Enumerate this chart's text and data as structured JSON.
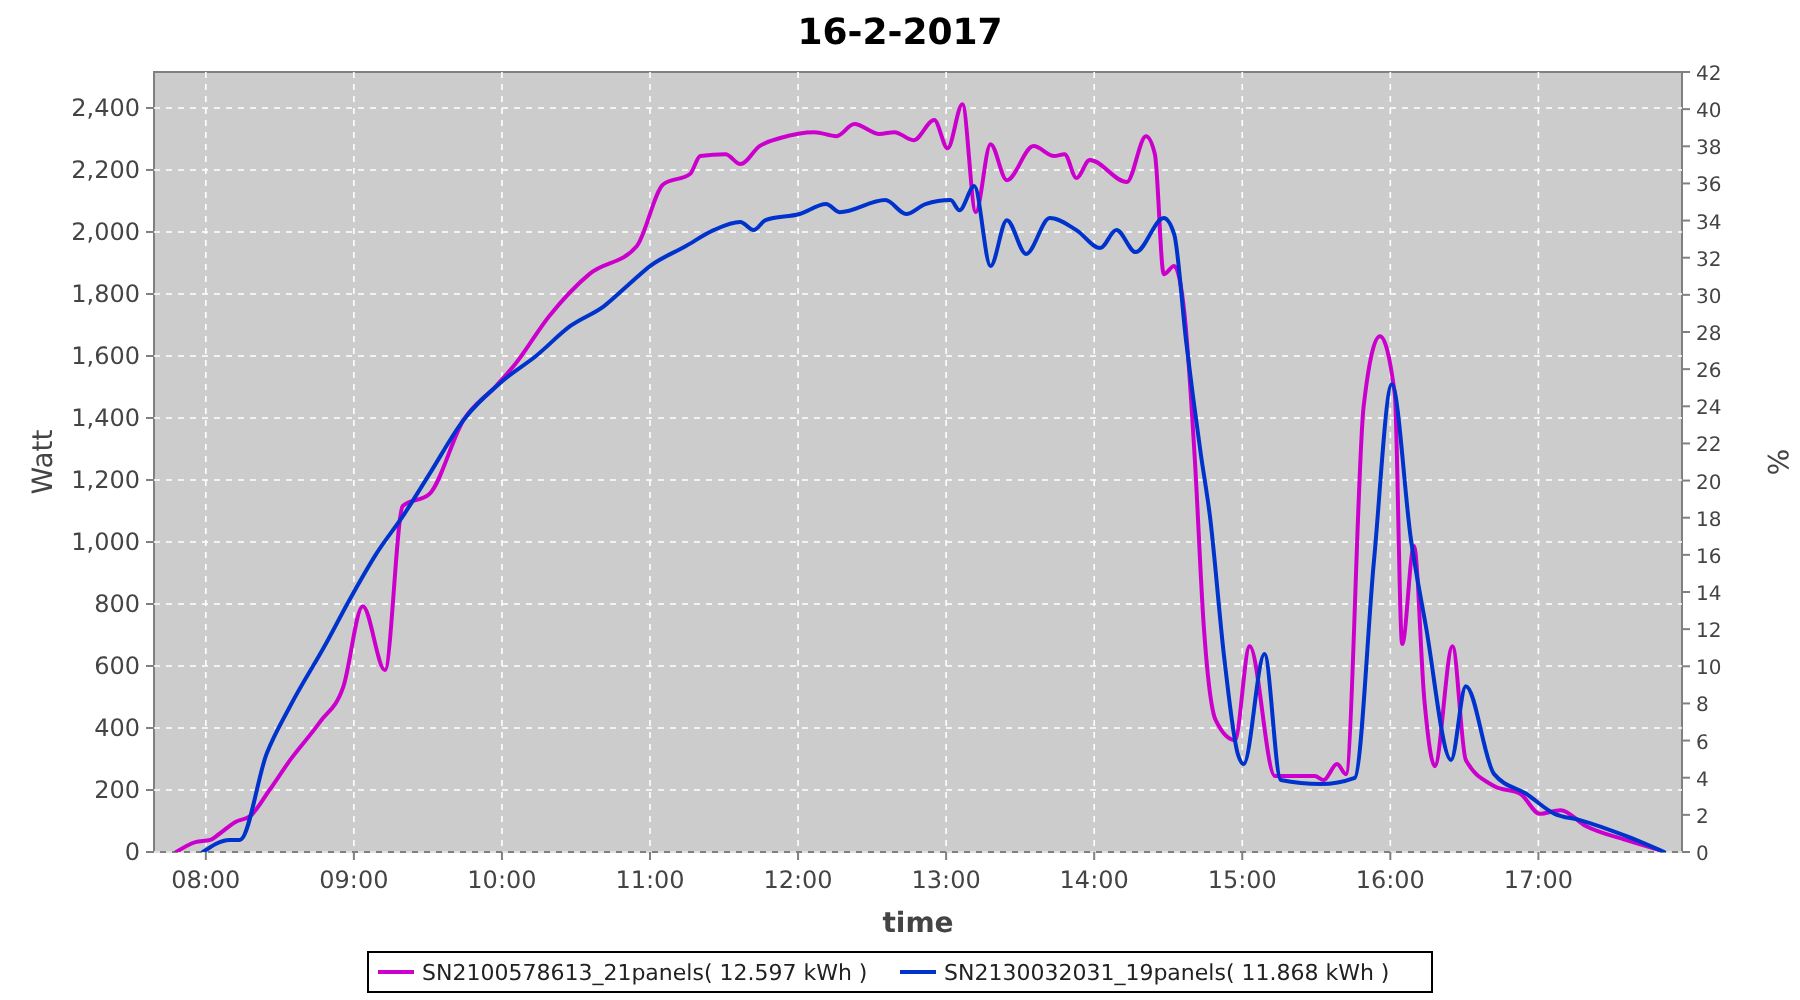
{
  "chart_data": {
    "type": "line",
    "title": "16-2-2017",
    "xlabel": "time",
    "ylabel": "Watt",
    "y2label": "%",
    "xlim": [
      7.65,
      17.97
    ],
    "xticks": [
      {
        "value": 8,
        "label": "08:00"
      },
      {
        "value": 9,
        "label": "09:00"
      },
      {
        "value": 10,
        "label": "10:00"
      },
      {
        "value": 11,
        "label": "11:00"
      },
      {
        "value": 12,
        "label": "12:00"
      },
      {
        "value": 13,
        "label": "13:00"
      },
      {
        "value": 14,
        "label": "14:00"
      },
      {
        "value": 15,
        "label": "15:00"
      },
      {
        "value": 16,
        "label": "16:00"
      },
      {
        "value": 17,
        "label": "17:00"
      }
    ],
    "ylim": [
      0,
      2516
    ],
    "yticks": [
      0,
      {
        "value": 200,
        "label": "200"
      },
      {
        "value": 400,
        "label": "400"
      },
      {
        "value": 600,
        "label": "600"
      },
      {
        "value": 800,
        "label": "800"
      },
      {
        "value": 1000,
        "label": "1,000"
      },
      {
        "value": 1200,
        "label": "1,200"
      },
      {
        "value": 1400,
        "label": "1,400"
      },
      {
        "value": 1600,
        "label": "1,600"
      },
      {
        "value": 1800,
        "label": "1,800"
      },
      {
        "value": 2000,
        "label": "2,000"
      },
      {
        "value": 2200,
        "label": "2,200"
      },
      {
        "value": 2400,
        "label": "2,400"
      }
    ],
    "y2lim": [
      0,
      42
    ],
    "y2ticks": [
      0,
      2,
      4,
      6,
      8,
      10,
      12,
      14,
      16,
      18,
      20,
      22,
      24,
      26,
      28,
      30,
      32,
      34,
      36,
      38,
      40,
      42
    ],
    "grid": true,
    "legend": "bottom",
    "line_style": "solid",
    "series": [
      {
        "name": "SN2100578613_21panels( 12.597 kWh )",
        "color": "#cc00cc",
        "x": [
          7.8,
          7.93,
          8.03,
          8.09,
          8.2,
          8.3,
          8.43,
          8.57,
          8.77,
          8.93,
          9.06,
          9.21,
          9.33,
          9.51,
          9.74,
          9.96,
          10.09,
          10.32,
          10.59,
          10.91,
          11.09,
          11.27,
          11.34,
          11.51,
          11.61,
          11.74,
          11.88,
          12.11,
          12.26,
          12.38,
          12.55,
          12.65,
          12.78,
          12.92,
          13.01,
          13.11,
          13.2,
          13.3,
          13.41,
          13.59,
          13.73,
          13.8,
          13.88,
          13.97,
          14.22,
          14.35,
          14.41,
          14.47,
          14.54,
          14.61,
          14.68,
          14.74,
          14.82,
          14.95,
          15.05,
          15.22,
          15.49,
          15.55,
          15.64,
          15.7,
          15.82,
          15.93,
          16.03,
          16.08,
          16.16,
          16.23,
          16.3,
          16.42,
          16.51,
          16.7,
          16.88,
          17.01,
          17.15,
          17.32,
          17.59,
          17.82
        ],
        "values": [
          0,
          32,
          39,
          58,
          97,
          116,
          200,
          297,
          419,
          535,
          793,
          587,
          1116,
          1155,
          1393,
          1503,
          1574,
          1729,
          1864,
          1954,
          2154,
          2187,
          2245,
          2251,
          2219,
          2277,
          2303,
          2322,
          2309,
          2348,
          2316,
          2322,
          2296,
          2361,
          2270,
          2412,
          2064,
          2283,
          2167,
          2277,
          2245,
          2251,
          2174,
          2232,
          2161,
          2309,
          2251,
          1864,
          1890,
          1735,
          1264,
          729,
          426,
          361,
          664,
          245,
          245,
          232,
          284,
          251,
          1438,
          1664,
          1477,
          671,
          987,
          490,
          277,
          664,
          297,
          213,
          187,
          123,
          135,
          84,
          39,
          6
        ]
      },
      {
        "name": "SN2130032031_19panels( 11.868 kWh )",
        "color": "#0033cc",
        "x": [
          7.98,
          8.16,
          8.23,
          8.41,
          8.57,
          8.81,
          8.97,
          9.15,
          9.34,
          9.51,
          9.74,
          10.01,
          10.23,
          10.46,
          10.69,
          10.86,
          11,
          11.24,
          11.43,
          11.61,
          11.7,
          11.78,
          12.01,
          12.19,
          12.28,
          12.59,
          12.73,
          12.86,
          13.03,
          13.09,
          13.19,
          13.3,
          13.41,
          13.54,
          13.7,
          13.88,
          14.04,
          14.15,
          14.28,
          14.47,
          14.54,
          14.62,
          14.72,
          14.78,
          14.88,
          14.97,
          15.01,
          15.15,
          15.26,
          15.53,
          15.76,
          15.89,
          16.01,
          16.14,
          16.24,
          16.41,
          16.51,
          16.7,
          16.92,
          17.11,
          17.28,
          17.59,
          17.85
        ],
        "values": [
          0,
          39,
          39,
          316,
          471,
          671,
          813,
          961,
          1090,
          1219,
          1393,
          1522,
          1600,
          1696,
          1761,
          1832,
          1890,
          1954,
          2006,
          2032,
          2006,
          2038,
          2058,
          2090,
          2064,
          2103,
          2058,
          2090,
          2103,
          2070,
          2148,
          1890,
          2038,
          1929,
          2045,
          2006,
          1948,
          2006,
          1935,
          2045,
          1993,
          1651,
          1284,
          1090,
          619,
          316,
          284,
          639,
          232,
          219,
          239,
          942,
          1509,
          1006,
          729,
          297,
          535,
          252,
          187,
          123,
          103,
          52,
          0
        ]
      }
    ]
  }
}
